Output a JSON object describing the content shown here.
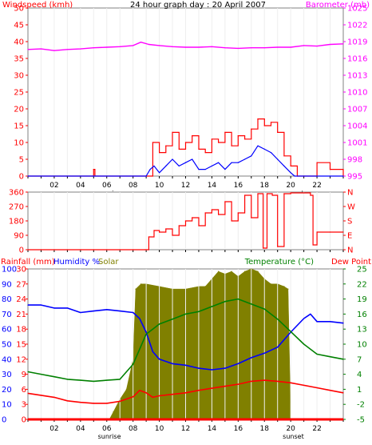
{
  "colors": {
    "wind": "#ff0000",
    "windAvg": "#0000ff",
    "baro": "#ff00ff",
    "dir": "#ff0000",
    "rain": "#ff0000",
    "humidity": "#0000ff",
    "solar": "#808000",
    "temperature": "#008000",
    "dewpoint": "#ff0000",
    "axisBlack": "#000000",
    "frame": "#808080",
    "grid": "#c0c0c0"
  },
  "chart_data": [
    {
      "type": "line",
      "title": "24 hour graph day : 20 April 2007",
      "left_axis_label": "Windspeed (kmh)",
      "right_axis_label": "Barometer (mb)",
      "x_range_hours": [
        0,
        24
      ],
      "x_ticks": [
        "02",
        "04",
        "06",
        "08",
        "10",
        "12",
        "14",
        "16",
        "18",
        "20",
        "22"
      ],
      "x_annotations": [
        {
          "label": "sunrise",
          "hour": 6.2
        },
        {
          "label": "sunset",
          "hour": 20.2
        }
      ],
      "y_left_range": [
        0,
        50
      ],
      "y_left_ticks": [
        "0",
        "5",
        "10",
        "15",
        "20",
        "25",
        "30",
        "35",
        "40",
        "45",
        "50"
      ],
      "y_right_range": [
        995,
        1025
      ],
      "y_right_ticks": [
        "995",
        "998",
        "1001",
        "1004",
        "1007",
        "1010",
        "1013",
        "1016",
        "1019",
        "1022",
        "1025"
      ],
      "series": [
        {
          "name": "Windspeed (kmh)",
          "style": "spiky",
          "axis": "left",
          "x": [
            0,
            4.9,
            5.0,
            5.1,
            9.0,
            9.5,
            10.0,
            10.5,
            11.0,
            11.5,
            12.0,
            12.5,
            13.0,
            13.5,
            14.0,
            14.5,
            15.0,
            15.5,
            16.0,
            16.5,
            17.0,
            17.5,
            18.0,
            18.5,
            19.0,
            19.5,
            20.0,
            20.5,
            21.0,
            22.0,
            23.0,
            24.0
          ],
          "values": [
            0,
            0,
            2,
            0,
            0,
            10,
            7,
            9,
            13,
            8,
            10,
            12,
            8,
            7,
            11,
            10,
            13,
            9,
            12,
            11,
            14,
            17,
            15,
            16,
            13,
            6,
            3,
            0,
            0,
            4,
            2,
            0
          ]
        },
        {
          "name": "Wind average",
          "axis": "left",
          "x": [
            0,
            9.0,
            9.3,
            9.6,
            10.0,
            10.5,
            11.0,
            11.5,
            12.0,
            12.5,
            13.0,
            13.5,
            14.0,
            14.5,
            15.0,
            15.5,
            16.0,
            16.5,
            17.0,
            17.5,
            18.0,
            18.5,
            19.0,
            19.5,
            20.0,
            20.3,
            24.0
          ],
          "values": [
            0,
            0,
            2,
            3,
            1,
            3,
            5,
            3,
            4,
            5,
            2,
            2,
            3,
            4,
            2,
            4,
            4,
            5,
            6,
            9,
            8,
            7,
            5,
            3,
            1,
            0,
            0
          ]
        },
        {
          "name": "Barometer (mb)",
          "axis": "right",
          "x": [
            0,
            1,
            2,
            3,
            4,
            5,
            6,
            7,
            8,
            8.6,
            9.2,
            10,
            11,
            12,
            13,
            14,
            15,
            16,
            17,
            18,
            19,
            20,
            21,
            22,
            23,
            24
          ],
          "values": [
            1017.6,
            1017.7,
            1017.4,
            1017.6,
            1017.7,
            1017.9,
            1018.0,
            1018.1,
            1018.3,
            1018.9,
            1018.5,
            1018.3,
            1018.1,
            1018.0,
            1018.0,
            1018.1,
            1017.9,
            1017.8,
            1017.9,
            1017.9,
            1018.0,
            1018.0,
            1018.3,
            1018.2,
            1018.5,
            1018.6
          ]
        }
      ]
    },
    {
      "type": "line",
      "title": "",
      "left_axis_label": "",
      "x_range_hours": [
        0,
        24
      ],
      "y_left_range": [
        0,
        360
      ],
      "y_left_ticks": [
        "0",
        "90",
        "180",
        "270",
        "360"
      ],
      "y_right_ticks": [
        "N",
        "E",
        "S",
        "W",
        "N"
      ],
      "series": [
        {
          "name": "Wind direction",
          "axis": "left",
          "x": [
            0,
            8.9,
            9.2,
            9.6,
            10.0,
            10.5,
            11.0,
            11.5,
            12.0,
            12.5,
            13.0,
            13.5,
            14.0,
            14.5,
            15.0,
            15.5,
            16.0,
            16.5,
            17.0,
            17.5,
            17.9,
            18.2,
            18.6,
            19.0,
            19.5,
            20.0,
            21.0,
            21.5,
            21.7,
            22.0,
            23.0,
            24.0
          ],
          "values": [
            0,
            0,
            80,
            120,
            110,
            130,
            90,
            150,
            180,
            200,
            150,
            230,
            250,
            220,
            300,
            180,
            230,
            340,
            200,
            350,
            10,
            350,
            340,
            20,
            350,
            355,
            355,
            340,
            30,
            110,
            110,
            110
          ]
        }
      ]
    },
    {
      "type": "line",
      "title": "",
      "left_axis_labels": [
        "Rainfall (mm)",
        "Humidity %",
        "Solar"
      ],
      "right_axis_labels": [
        "Temperature (°C)",
        "Dew Point"
      ],
      "x_range_hours": [
        0,
        24
      ],
      "x_ticks": [
        "02",
        "04",
        "06",
        "08",
        "10",
        "12",
        "14",
        "16",
        "18",
        "20",
        "22"
      ],
      "x_annotations": [
        {
          "label": "sunrise",
          "hour": 6.2
        },
        {
          "label": "sunset",
          "hour": 20.2
        }
      ],
      "y_rain_range": [
        0,
        30
      ],
      "y_rain_ticks": [
        "0",
        "3",
        "6",
        "9",
        "12",
        "15",
        "18",
        "21",
        "24",
        "27",
        "30"
      ],
      "y_humidity_range": [
        0,
        100
      ],
      "y_humidity_ticks": [
        "0",
        "10",
        "20",
        "30",
        "40",
        "50",
        "60",
        "70",
        "80",
        "90",
        "100"
      ],
      "y_right_range": [
        -5,
        25
      ],
      "y_right_ticks": [
        "-5",
        "-2",
        "1",
        "4",
        "7",
        "10",
        "13",
        "16",
        "19",
        "22",
        "25"
      ],
      "series": [
        {
          "name": "Solar",
          "type": "area",
          "axis": "rain",
          "x": [
            0,
            6.2,
            6.5,
            7.0,
            7.5,
            8.0,
            8.2,
            8.6,
            9.0,
            10.0,
            11.0,
            12.0,
            13.0,
            13.5,
            14.0,
            14.5,
            15.0,
            15.5,
            16.0,
            16.5,
            17.0,
            17.5,
            18.0,
            18.5,
            19.0,
            19.5,
            19.8,
            20.0,
            24.0
          ],
          "values": [
            0,
            0,
            1.5,
            4,
            6,
            12,
            26,
            27,
            27,
            26.5,
            26,
            26,
            26.5,
            26.5,
            28,
            29.5,
            29,
            29.5,
            28.5,
            29.5,
            30,
            29.5,
            28,
            27,
            27,
            26.5,
            26,
            0,
            0
          ]
        },
        {
          "name": "Humidity %",
          "axis": "humidity",
          "x": [
            0,
            1,
            2,
            3,
            4,
            5,
            6,
            7,
            8,
            8.5,
            9.0,
            9.5,
            10.0,
            11.0,
            12.0,
            13.0,
            14.0,
            15.0,
            16.0,
            17.0,
            18.0,
            19.0,
            20.0,
            21.0,
            21.5,
            22.0,
            23.0,
            24.0
          ],
          "values": [
            76,
            76,
            74,
            74,
            71,
            72,
            73,
            72,
            71,
            67,
            58,
            45,
            40,
            37,
            36,
            34,
            33,
            34,
            37,
            41,
            44,
            48,
            58,
            67,
            70,
            65,
            65,
            64
          ]
        },
        {
          "name": "Temperature (°C)",
          "axis": "right",
          "x": [
            0,
            1,
            2,
            3,
            4,
            5,
            6,
            7,
            8,
            8.5,
            9.0,
            9.5,
            10.0,
            11.0,
            12.0,
            13.0,
            14.0,
            15.0,
            16.0,
            17.0,
            18.0,
            19.0,
            20.0,
            21.0,
            22.0,
            23.0,
            24.0
          ],
          "values": [
            4.5,
            4.0,
            3.5,
            3.0,
            2.8,
            2.6,
            2.8,
            3.0,
            6.0,
            9.0,
            12.0,
            13.0,
            14.0,
            15.0,
            16.0,
            16.5,
            17.5,
            18.5,
            19.0,
            18.0,
            17.0,
            15.0,
            12.5,
            10.0,
            8.0,
            7.5,
            7.0
          ]
        },
        {
          "name": "Dew Point",
          "axis": "right",
          "x": [
            0,
            1,
            2,
            3,
            4,
            5,
            6,
            7,
            8,
            8.5,
            9.0,
            9.5,
            10.0,
            11.0,
            12.0,
            13.0,
            14.0,
            15.0,
            16.0,
            17.0,
            18.0,
            19.0,
            20.0,
            21.0,
            22.0,
            23.0,
            24.0
          ],
          "values": [
            0.2,
            -0.2,
            -0.6,
            -1.3,
            -1.6,
            -1.8,
            -1.8,
            -1.4,
            -0.5,
            0.8,
            0.3,
            -0.6,
            -0.3,
            0.0,
            0.3,
            0.8,
            1.2,
            1.6,
            2.0,
            2.6,
            2.8,
            2.6,
            2.3,
            1.8,
            1.3,
            0.8,
            0.3
          ]
        },
        {
          "name": "Rainfall (mm)",
          "axis": "rain",
          "x": [
            0,
            24
          ],
          "values": [
            0,
            0
          ]
        }
      ]
    }
  ]
}
